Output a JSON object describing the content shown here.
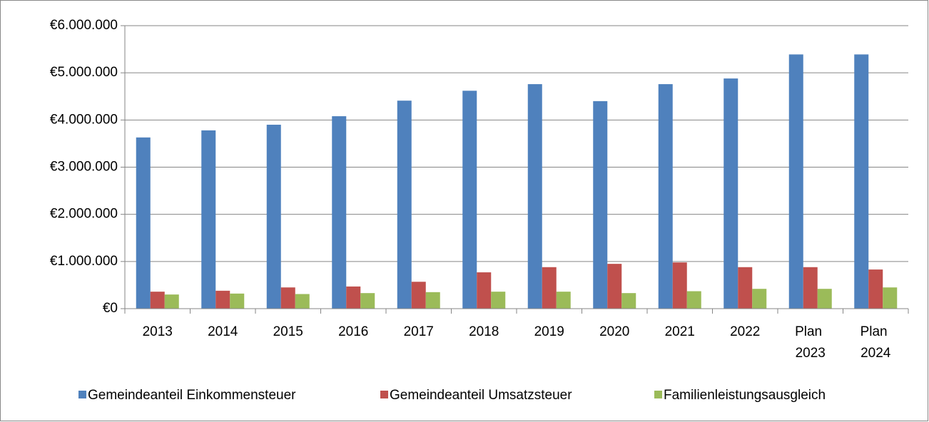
{
  "chart_data": {
    "type": "bar",
    "categories": [
      "2013",
      "2014",
      "2015",
      "2016",
      "2017",
      "2018",
      "2019",
      "2020",
      "2021",
      "2022",
      "Plan 2023",
      "Plan 2024"
    ],
    "series": [
      {
        "name": "Gemeindeanteil Einkommensteuer",
        "color": "#4f81bd",
        "values": [
          3630000,
          3780000,
          3900000,
          4080000,
          4410000,
          4620000,
          4760000,
          4400000,
          4760000,
          4880000,
          5390000,
          5390000
        ]
      },
      {
        "name": "Gemeindeanteil Umsatzsteuer",
        "color": "#c0504d",
        "values": [
          360000,
          380000,
          450000,
          470000,
          570000,
          770000,
          880000,
          950000,
          980000,
          880000,
          880000,
          830000
        ]
      },
      {
        "name": "Familienleistungsausgleich",
        "color": "#9bbb59",
        "values": [
          300000,
          320000,
          310000,
          330000,
          350000,
          360000,
          360000,
          330000,
          370000,
          420000,
          420000,
          450000
        ]
      }
    ],
    "ylim": [
      0,
      6000000
    ],
    "yticks": [
      {
        "value": 0,
        "label": "€0"
      },
      {
        "value": 1000000,
        "label": "€1.000.000"
      },
      {
        "value": 2000000,
        "label": "€2.000.000"
      },
      {
        "value": 3000000,
        "label": "€3.000.000"
      },
      {
        "value": 4000000,
        "label": "€4.000.000"
      },
      {
        "value": 5000000,
        "label": "€5.000.000"
      },
      {
        "value": 6000000,
        "label": "€6.000.000"
      }
    ],
    "grid": true,
    "legend": "bottom"
  }
}
